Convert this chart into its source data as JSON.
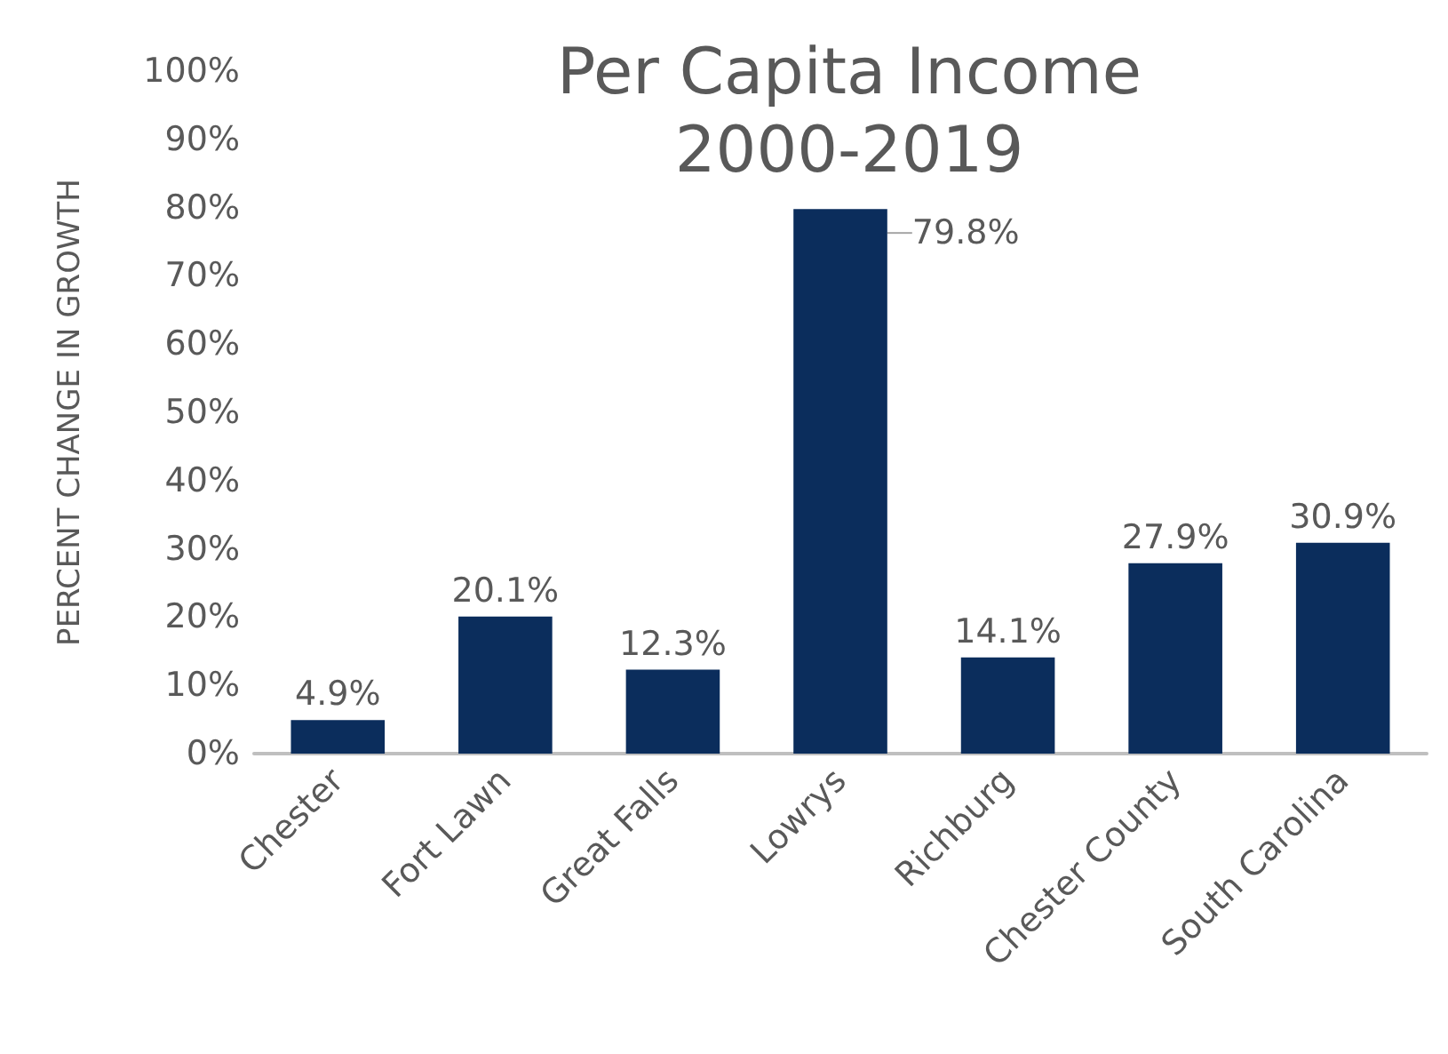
{
  "chart_data": {
    "type": "bar",
    "title": "Per Capita Income\n2000-2019",
    "ylabel": "PERCENT CHANGE IN GROWTH",
    "categories": [
      "Chester",
      "Fort Lawn",
      "Great Falls",
      "Lowrys",
      "Richburg",
      "Chester County",
      "South Carolina"
    ],
    "values": [
      4.9,
      20.1,
      12.3,
      79.8,
      14.1,
      27.9,
      30.9
    ],
    "value_labels": [
      "4.9%",
      "20.1%",
      "12.3%",
      "79.8%",
      "14.1%",
      "27.9%",
      "30.9%"
    ],
    "color": "#0b2d5c",
    "ylim": [
      0,
      100
    ],
    "yticks": [
      {
        "value": 0,
        "label": "0%"
      },
      {
        "value": 10,
        "label": "10%"
      },
      {
        "value": 20,
        "label": "20%"
      },
      {
        "value": 30,
        "label": "30%"
      },
      {
        "value": 40,
        "label": "40%"
      },
      {
        "value": 50,
        "label": "50%"
      },
      {
        "value": 60,
        "label": "60%"
      },
      {
        "value": 70,
        "label": "70%"
      },
      {
        "value": 80,
        "label": "80%"
      },
      {
        "value": 90,
        "label": "90%"
      },
      {
        "value": 100,
        "label": "100%"
      }
    ],
    "grid": false
  }
}
